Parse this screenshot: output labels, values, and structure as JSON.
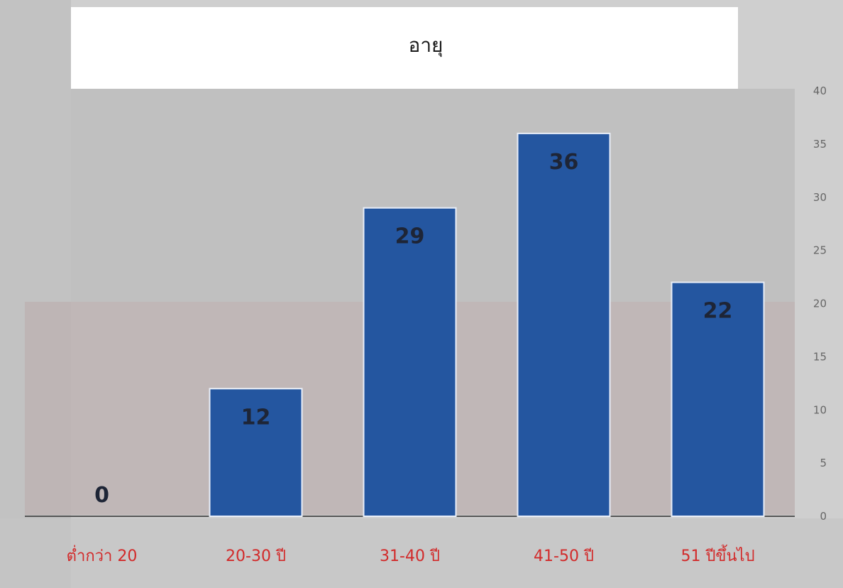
{
  "chart_data": {
    "type": "bar",
    "title": "อายุ",
    "categories": [
      "ต่ำกว่า 20",
      "20-30 ปี",
      "31-40 ปี",
      "41-50 ปี",
      "51 ปีขึ้นไป"
    ],
    "values": [
      0,
      12,
      29,
      36,
      22
    ],
    "ylim": [
      0,
      40
    ],
    "yticks": [
      0,
      5,
      10,
      15,
      20,
      25,
      30,
      35,
      40
    ],
    "y_axis_side": "right",
    "data_labels": true,
    "grid": false,
    "legend": "none",
    "colors": {
      "bar": "#2456a0",
      "data_label": "#1e2536",
      "category_label": "#d22a2a",
      "tick_label": "#666666"
    }
  }
}
